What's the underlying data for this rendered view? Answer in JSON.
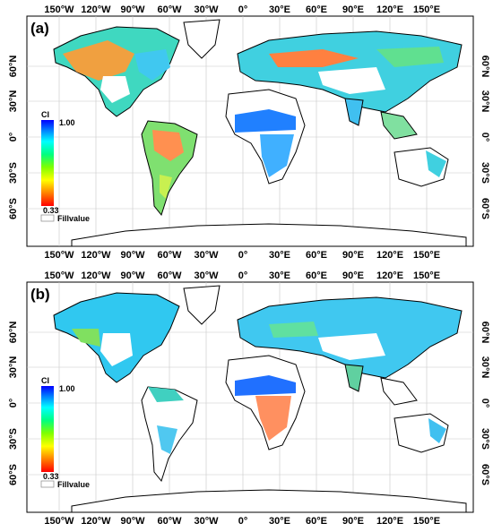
{
  "panels": [
    {
      "label": "(a)",
      "top_lon_labels": [
        "150°W",
        "120°W",
        "90°W",
        "60°W",
        "30°W",
        "0°",
        "30°E",
        "60°E",
        "90°E",
        "120°E",
        "150°E"
      ],
      "bottom_lon_labels": [
        "150°W",
        "120°W",
        "90°W",
        "60°W",
        "30°W",
        "0°",
        "30°E",
        "60°E",
        "90°E",
        "120°E",
        "150°E"
      ],
      "left_lat_labels": [
        "60°N",
        "30°N",
        "0°",
        "30°S",
        "60°S"
      ],
      "right_lat_labels": [
        "60°N",
        "30°N",
        "0°",
        "30°S",
        "60°S"
      ]
    },
    {
      "label": "(b)",
      "top_lon_labels": [
        "150°W",
        "120°W",
        "90°W",
        "60°W",
        "30°W",
        "0°",
        "30°E",
        "60°E",
        "90°E",
        "120°E",
        "150°E"
      ],
      "bottom_lon_labels": [
        "150°W",
        "120°W",
        "90°W",
        "60°W",
        "30°W",
        "0°",
        "30°E",
        "60°E",
        "90°E",
        "120°E",
        "150°E"
      ],
      "left_lat_labels": [
        "60°N",
        "30°N",
        "0°",
        "30°S",
        "60°S"
      ],
      "right_lat_labels": [
        "60°N",
        "30°N",
        "0°",
        "30°S",
        "60°S"
      ]
    }
  ],
  "colorbar": {
    "title": "CI",
    "max_label": "1.00",
    "min_label": "0.33",
    "fill_label": "Fillvalue",
    "colors": [
      "#ff0000",
      "#ff7f00",
      "#ffff00",
      "#7fff00",
      "#00ff7f",
      "#00ffff",
      "#0080ff",
      "#0000ff"
    ]
  },
  "map_colors": {
    "ocean": "#ffffff",
    "fill": "#ffffff",
    "coast": "#000000",
    "grid": "#c8c8c8"
  }
}
